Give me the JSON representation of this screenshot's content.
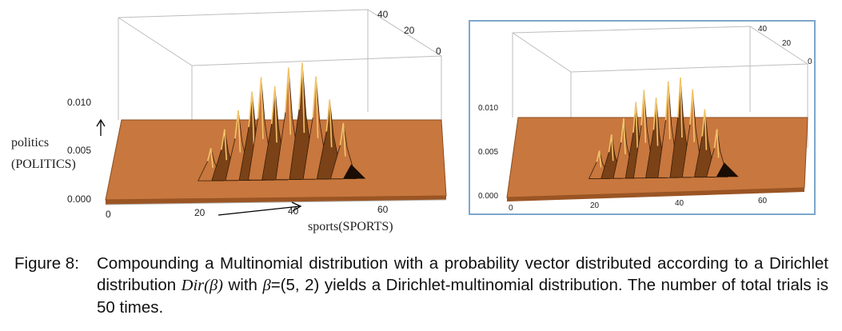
{
  "chart_data": [
    {
      "type": "surface",
      "panel": "left",
      "xlabel": "sports(SPORTS)",
      "ylabel_line1": "politics",
      "ylabel_line2": "(POLITICS)",
      "x_ticks": [
        "0",
        "20",
        "40",
        "60"
      ],
      "z_ticks": [
        "0.000",
        "0.005",
        "0.010"
      ],
      "depth_ticks": [
        "40",
        "20",
        "0"
      ],
      "surface_color": "#c8773e",
      "peaks": [
        {
          "x": 22,
          "z": 0.0035
        },
        {
          "x": 25,
          "z": 0.0055
        },
        {
          "x": 28,
          "z": 0.0075
        },
        {
          "x": 31,
          "z": 0.0095
        },
        {
          "x": 33,
          "z": 0.011
        },
        {
          "x": 36,
          "z": 0.01
        },
        {
          "x": 39,
          "z": 0.012
        },
        {
          "x": 42,
          "z": 0.0125
        },
        {
          "x": 45,
          "z": 0.011
        },
        {
          "x": 48,
          "z": 0.0085
        },
        {
          "x": 51,
          "z": 0.006
        }
      ]
    },
    {
      "type": "surface",
      "panel": "right",
      "x_ticks": [
        "0",
        "20",
        "40",
        "60"
      ],
      "z_ticks": [
        "0.000",
        "0.005",
        "0.010"
      ],
      "depth_ticks": [
        "40",
        "20",
        "0"
      ],
      "surface_color": "#c8773e",
      "peaks": [
        {
          "x": 22,
          "z": 0.0035
        },
        {
          "x": 25,
          "z": 0.0055
        },
        {
          "x": 28,
          "z": 0.0075
        },
        {
          "x": 31,
          "z": 0.0095
        },
        {
          "x": 33,
          "z": 0.011
        },
        {
          "x": 36,
          "z": 0.01
        },
        {
          "x": 39,
          "z": 0.012
        },
        {
          "x": 42,
          "z": 0.0125
        },
        {
          "x": 45,
          "z": 0.011
        },
        {
          "x": 48,
          "z": 0.0085
        },
        {
          "x": 51,
          "z": 0.006
        }
      ]
    }
  ],
  "caption": {
    "label": "Figure 8:",
    "text_before_dir": "Compounding a Multinomial distribution with a probability vector distributed according to a Dirichlet distribution ",
    "dir_symbol": "Dir(β)",
    "text_middle": " with ",
    "beta_symbol": "β",
    "beta_value": "=(5, 2)",
    "text_after": " yields a Dirichlet-multinomial distribution. The number of total trials is 50 times."
  }
}
